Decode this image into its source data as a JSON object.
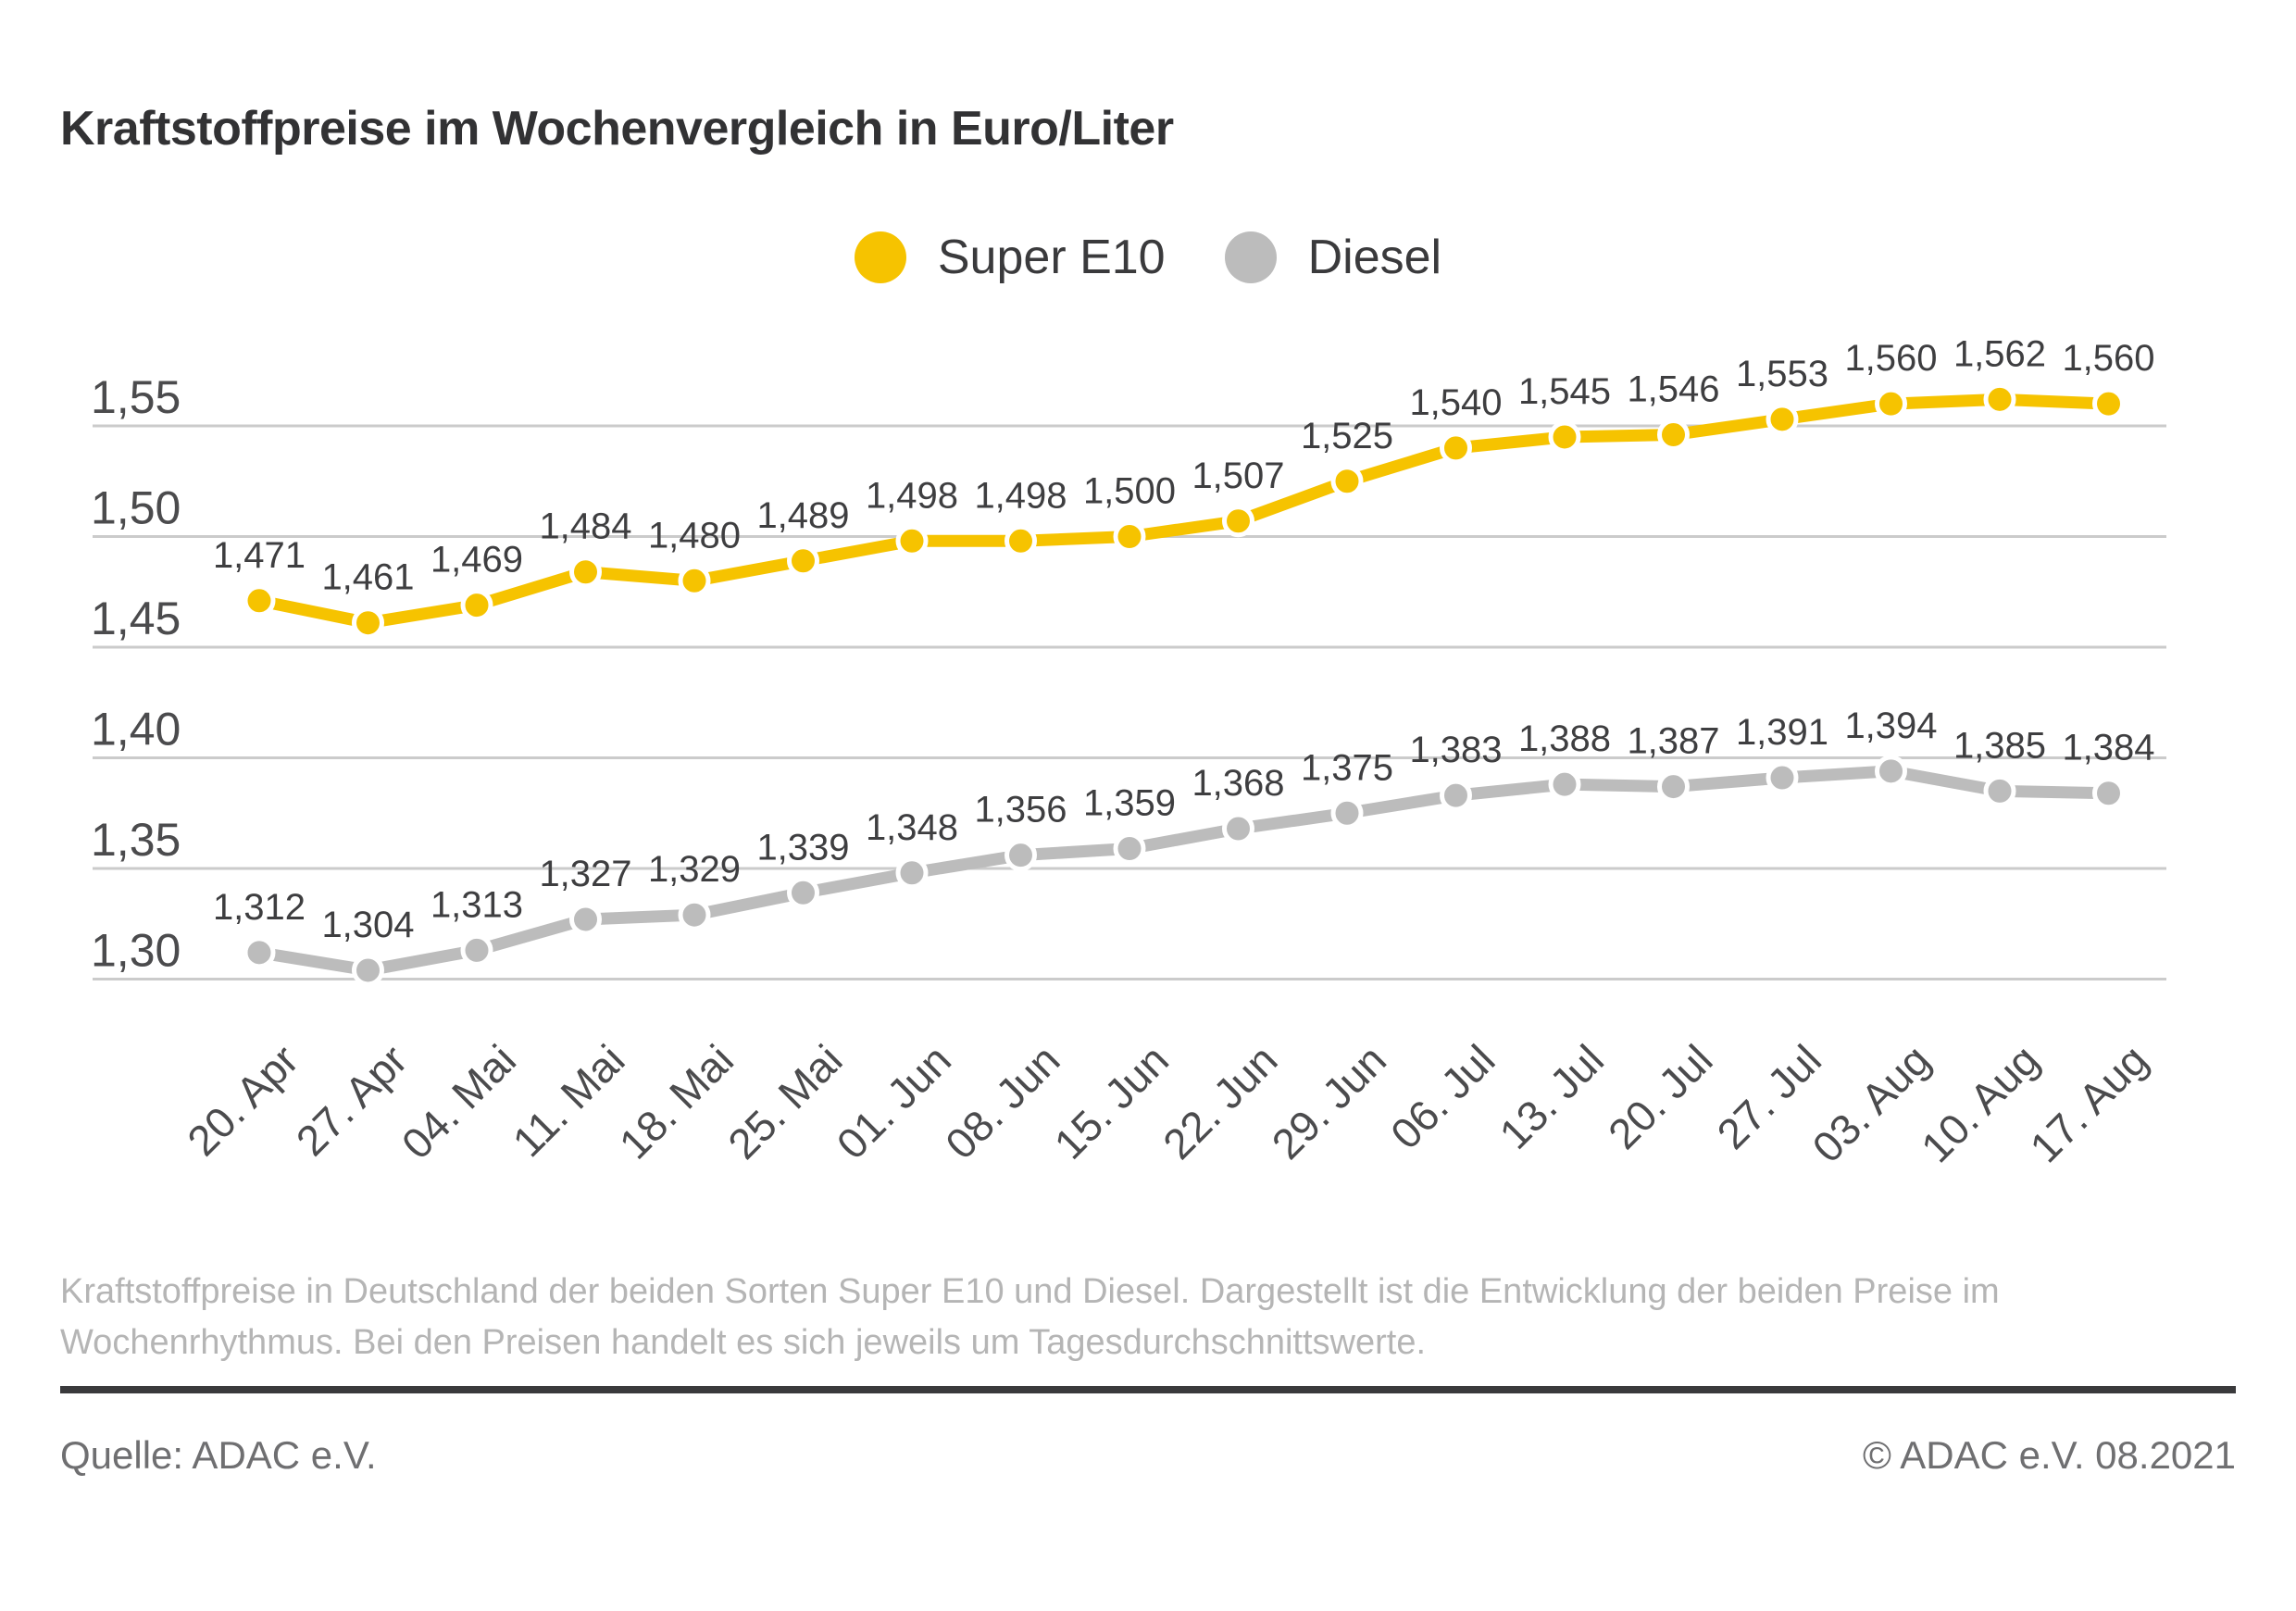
{
  "title": "Kraftstoffpreise im Wochenvergleich in Euro/Liter",
  "legend": [
    {
      "label": "Super E10",
      "color": "#F6C300"
    },
    {
      "label": "Diesel",
      "color": "#BCBCBC"
    }
  ],
  "chart_data": {
    "type": "line",
    "title": "Kraftstoffpreise im Wochenvergleich in Euro/Liter",
    "xlabel": "",
    "ylabel": "Euro/Liter",
    "ylim": [
      1.28,
      1.57
    ],
    "grid": "horizontal",
    "legend_position": "top-center",
    "categories": [
      "20. Apr",
      "27. Apr",
      "04. Mai",
      "11. Mai",
      "18. Mai",
      "25. Mai",
      "01. Jun",
      "08. Jun",
      "15. Jun",
      "22. Jun",
      "29. Jun",
      "06. Jul",
      "13. Jul",
      "20. Jul",
      "27. Jul",
      "03. Aug",
      "10. Aug",
      "17. Aug"
    ],
    "yticks": [
      {
        "value": 1.55,
        "label": "1,55"
      },
      {
        "value": 1.5,
        "label": "1,50"
      },
      {
        "value": 1.45,
        "label": "1,45"
      },
      {
        "value": 1.4,
        "label": "1,40"
      },
      {
        "value": 1.35,
        "label": "1,35"
      },
      {
        "value": 1.3,
        "label": "1,30"
      }
    ],
    "series": [
      {
        "name": "Super E10",
        "color": "#F6C300",
        "values": [
          1.471,
          1.461,
          1.469,
          1.484,
          1.48,
          1.489,
          1.498,
          1.498,
          1.5,
          1.507,
          1.525,
          1.54,
          1.545,
          1.546,
          1.553,
          1.56,
          1.562,
          1.56
        ],
        "labels": [
          "1,471",
          "1,461",
          "1,469",
          "1,484",
          "1,480",
          "1,489",
          "1,498",
          "1,498",
          "1,500",
          "1,507",
          "1,525",
          "1,540",
          "1,545",
          "1,546",
          "1,553",
          "1,560",
          "1,562",
          "1,560"
        ]
      },
      {
        "name": "Diesel",
        "color": "#BCBCBC",
        "values": [
          1.312,
          1.304,
          1.313,
          1.327,
          1.329,
          1.339,
          1.348,
          1.356,
          1.359,
          1.368,
          1.375,
          1.383,
          1.388,
          1.387,
          1.391,
          1.394,
          1.385,
          1.384
        ],
        "labels": [
          "1,312",
          "1,304",
          "1,313",
          "1,327",
          "1,329",
          "1,339",
          "1,348",
          "1,356",
          "1,359",
          "1,368",
          "1,375",
          "1,383",
          "1,388",
          "1,387",
          "1,391",
          "1,394",
          "1,385",
          "1,384"
        ]
      }
    ]
  },
  "footnote": "Kraftstoffpreise in Deutschland der beiden Sorten Super E10 und Diesel. Dargestellt ist die Entwicklung der beiden Preise im Wochenrhythmus. Bei den Preisen handelt es sich jeweils um Tagesdurchschnittswerte.",
  "source": "Quelle: ADAC e.V.",
  "copyright": "© ADAC e.V. 08.2021"
}
